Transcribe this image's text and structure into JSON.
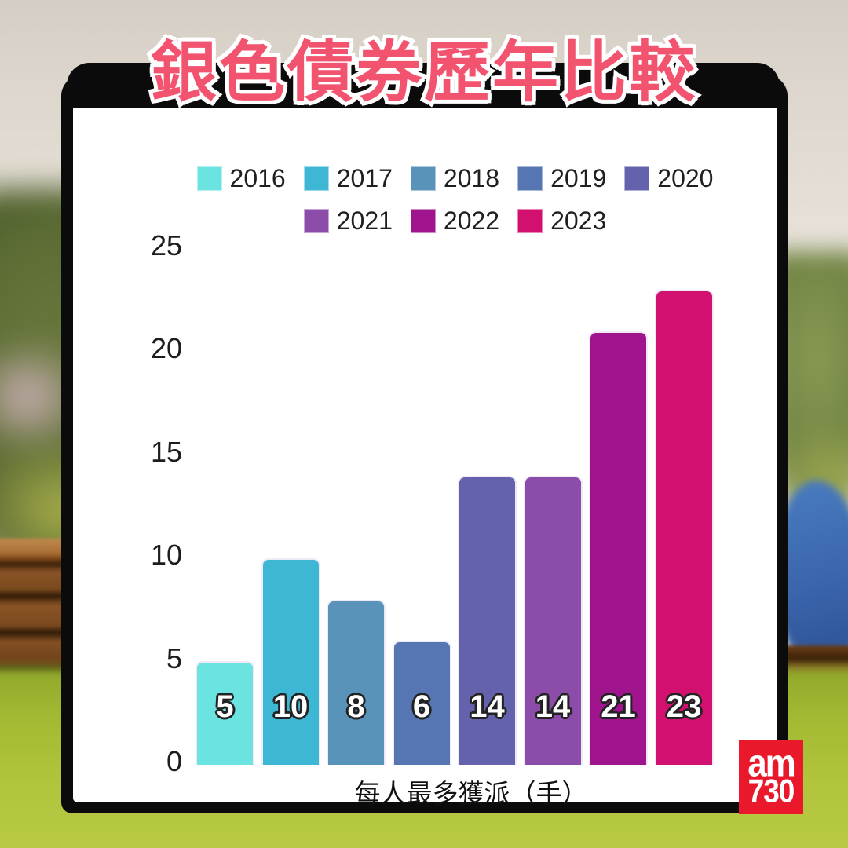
{
  "title": {
    "text": "銀色債券歷年比較"
  },
  "chart_data": {
    "type": "bar",
    "title": "銀色債券歷年比較",
    "categories": [
      "2016",
      "2017",
      "2018",
      "2019",
      "2020",
      "2021",
      "2022",
      "2023"
    ],
    "values": [
      5,
      10,
      8,
      6,
      14,
      14,
      21,
      23
    ],
    "bar_labels": [
      "5",
      "10",
      "8",
      "6",
      "14",
      "14",
      "21",
      "23"
    ],
    "colors": [
      "#6BE3E0",
      "#3EB7D5",
      "#5A93BA",
      "#5575B3",
      "#6562AD",
      "#8C4CAA",
      "#A0148E",
      "#D11070"
    ],
    "xlabel": "每人最多獲派（手）",
    "ylabel": "",
    "ylim": [
      0,
      25
    ],
    "yticks": [
      0,
      5,
      10,
      15,
      20,
      25
    ],
    "grid": false,
    "legend_position": "top, two centered rows (5 items + 3 items)",
    "legend_row_split": 5
  },
  "logo": {
    "line1": "am",
    "line2": "730",
    "color": "#E9192B"
  },
  "colors": {
    "title_pink": "#F2536E",
    "banner_black": "#0B0B0B",
    "card_white": "#FFFFFF"
  }
}
